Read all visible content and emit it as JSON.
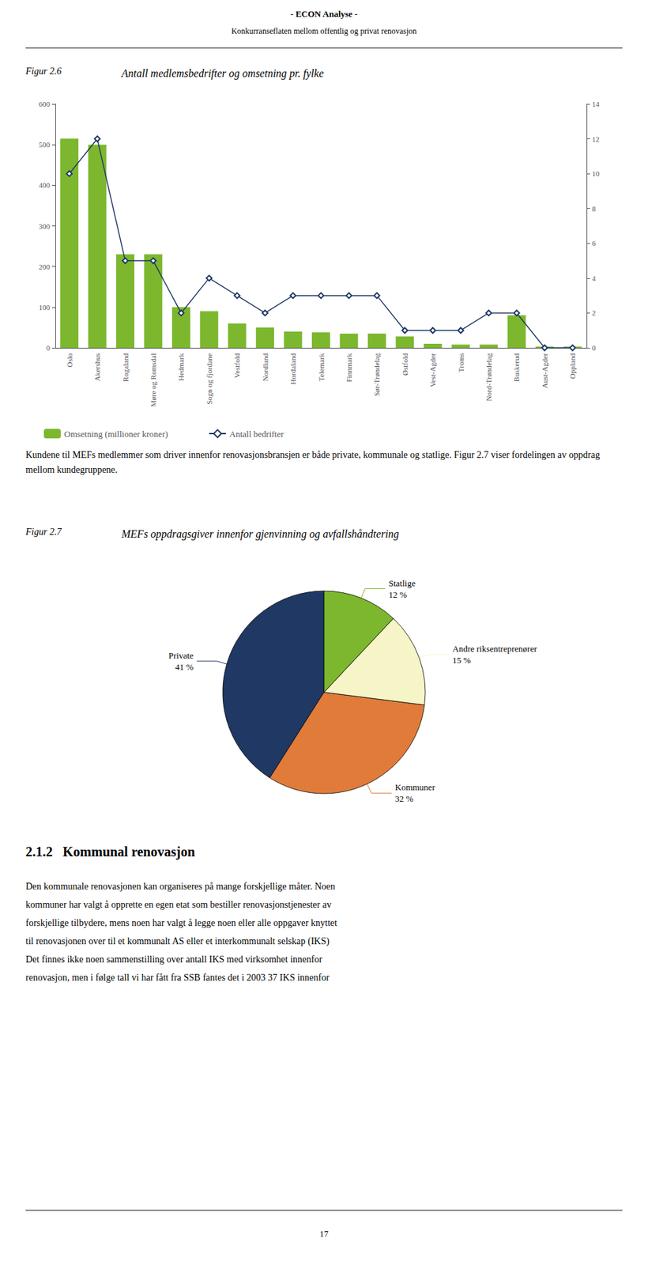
{
  "chart_data": [
    {
      "type": "bar",
      "title": "Antall medlemsbedrifter og omsetning pr. fylke",
      "annotations": [
        "- ECON Analyse -",
        "Konkurranseflaten mellom offentlig og privat renovasjon",
        "Figur 2.6",
        "Kundene til MEFs medlemmer som driver innenfor renovasjonsbransjen er både private, kommunale og statlige. Figur 2.7 viser fordelingen av oppdrag mellom kundegruppene."
      ],
      "categories": [
        "Oslo",
        "Akershus",
        "Rogaland",
        "Møre og Romsdal",
        "Hedmark",
        "Sogn og fjordane",
        "Vestfold",
        "Nordland",
        "Hordaland",
        "Telemark",
        "Finnmark",
        "Sør-Trøndelag",
        "Østfold",
        "Vest-Agder",
        "Troms",
        "Nord-Trøndelag",
        "Buskerud",
        "Aust-Agder",
        "Oppland"
      ],
      "series": [
        {
          "name": "Omsetning (millioner kroner)",
          "type": "bar",
          "color": "#7CB72E",
          "values": [
            515,
            500,
            230,
            230,
            100,
            90,
            60,
            50,
            40,
            38,
            35,
            35,
            28,
            10,
            8,
            8,
            80,
            3,
            3
          ]
        },
        {
          "name": "Antall bedrifter",
          "type": "line",
          "axis": "y2",
          "color": "#1F3864",
          "marker": "diamond",
          "values": [
            10,
            12,
            5,
            5,
            2,
            4,
            3,
            2,
            3,
            3,
            3,
            3,
            1,
            1,
            1,
            2,
            2,
            0,
            0
          ]
        }
      ],
      "ylim": [
        0,
        600
      ],
      "yticks": [
        0,
        100,
        200,
        300,
        400,
        500,
        600
      ],
      "y2lim": [
        0,
        14
      ],
      "y2ticks": [
        0,
        2,
        4,
        6,
        8,
        10,
        12,
        14
      ],
      "grid": false,
      "legend": "bottom"
    },
    {
      "type": "pie",
      "title": "MEFs oppdragsgiver innenfor gjenvinning og avfallshåndtering",
      "annotations": [
        "Figur 2.7",
        "2.1.2   Kommunal renovasjon",
        "Den kommunale renovasjonen kan organiseres på mange forskjellige måter. Noen",
        "kommuner har valgt å opprette en egen etat som bestiller renovasjonstjenester av",
        "forskjellige tilbydere, mens noen har valgt å legge noen eller alle oppgaver knyttet",
        "til renovasjonen over til et kommunalt AS eller et interkommunalt selskap (IKS)",
        "Det finnes ikke noen sammenstilling over antall IKS med virksomhet innenfor",
        "renovasjon, men i følge tall vi har fått fra SSB fantes det i 2003 37 IKS innenfor",
        "17"
      ],
      "categories": [
        "Private",
        "Kommuner",
        "Andre riksentreprenører",
        "Statlige"
      ],
      "values": [
        41,
        32,
        15,
        12
      ],
      "value_labels": [
        "41 %",
        "32 %",
        "15 %",
        "12 %"
      ],
      "colors": [
        "#1F3864",
        "#E07B39",
        "#F5F5C8",
        "#7CB72E"
      ],
      "data_labels": true
    }
  ]
}
